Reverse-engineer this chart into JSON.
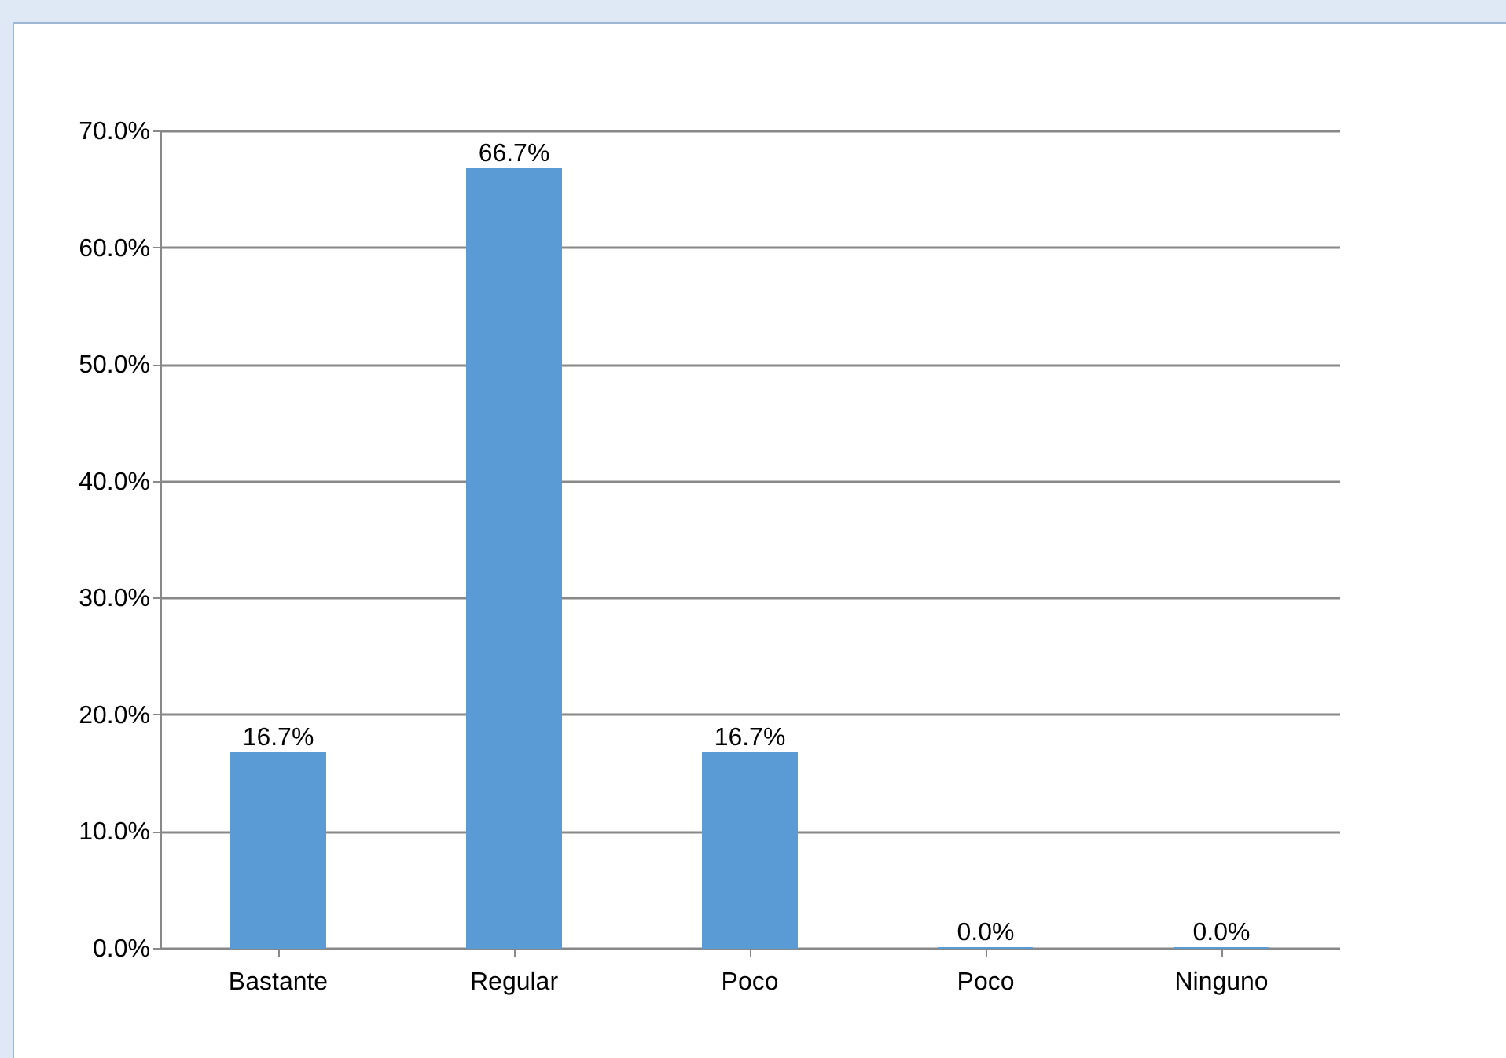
{
  "chart_data": {
    "type": "bar",
    "categories": [
      "Bastante",
      "Regular",
      "Poco",
      "Poco",
      "Ninguno"
    ],
    "values": [
      16.7,
      66.7,
      16.7,
      0,
      0
    ],
    "value_labels": [
      "16.7%",
      "66.7%",
      "16.7%",
      "0.0%",
      "0.0%"
    ],
    "color": "#5b9bd5",
    "ylim": [
      0,
      70
    ],
    "yticks": [
      {
        "value": 0,
        "label": "0.0%"
      },
      {
        "value": 10,
        "label": "10.0%"
      },
      {
        "value": 20,
        "label": "20.0%"
      },
      {
        "value": 30,
        "label": "30.0%"
      },
      {
        "value": 40,
        "label": "40.0%"
      },
      {
        "value": 50,
        "label": "50.0%"
      },
      {
        "value": 60,
        "label": "60.0%"
      },
      {
        "value": 70,
        "label": "70.0%"
      }
    ],
    "grid": "y"
  }
}
